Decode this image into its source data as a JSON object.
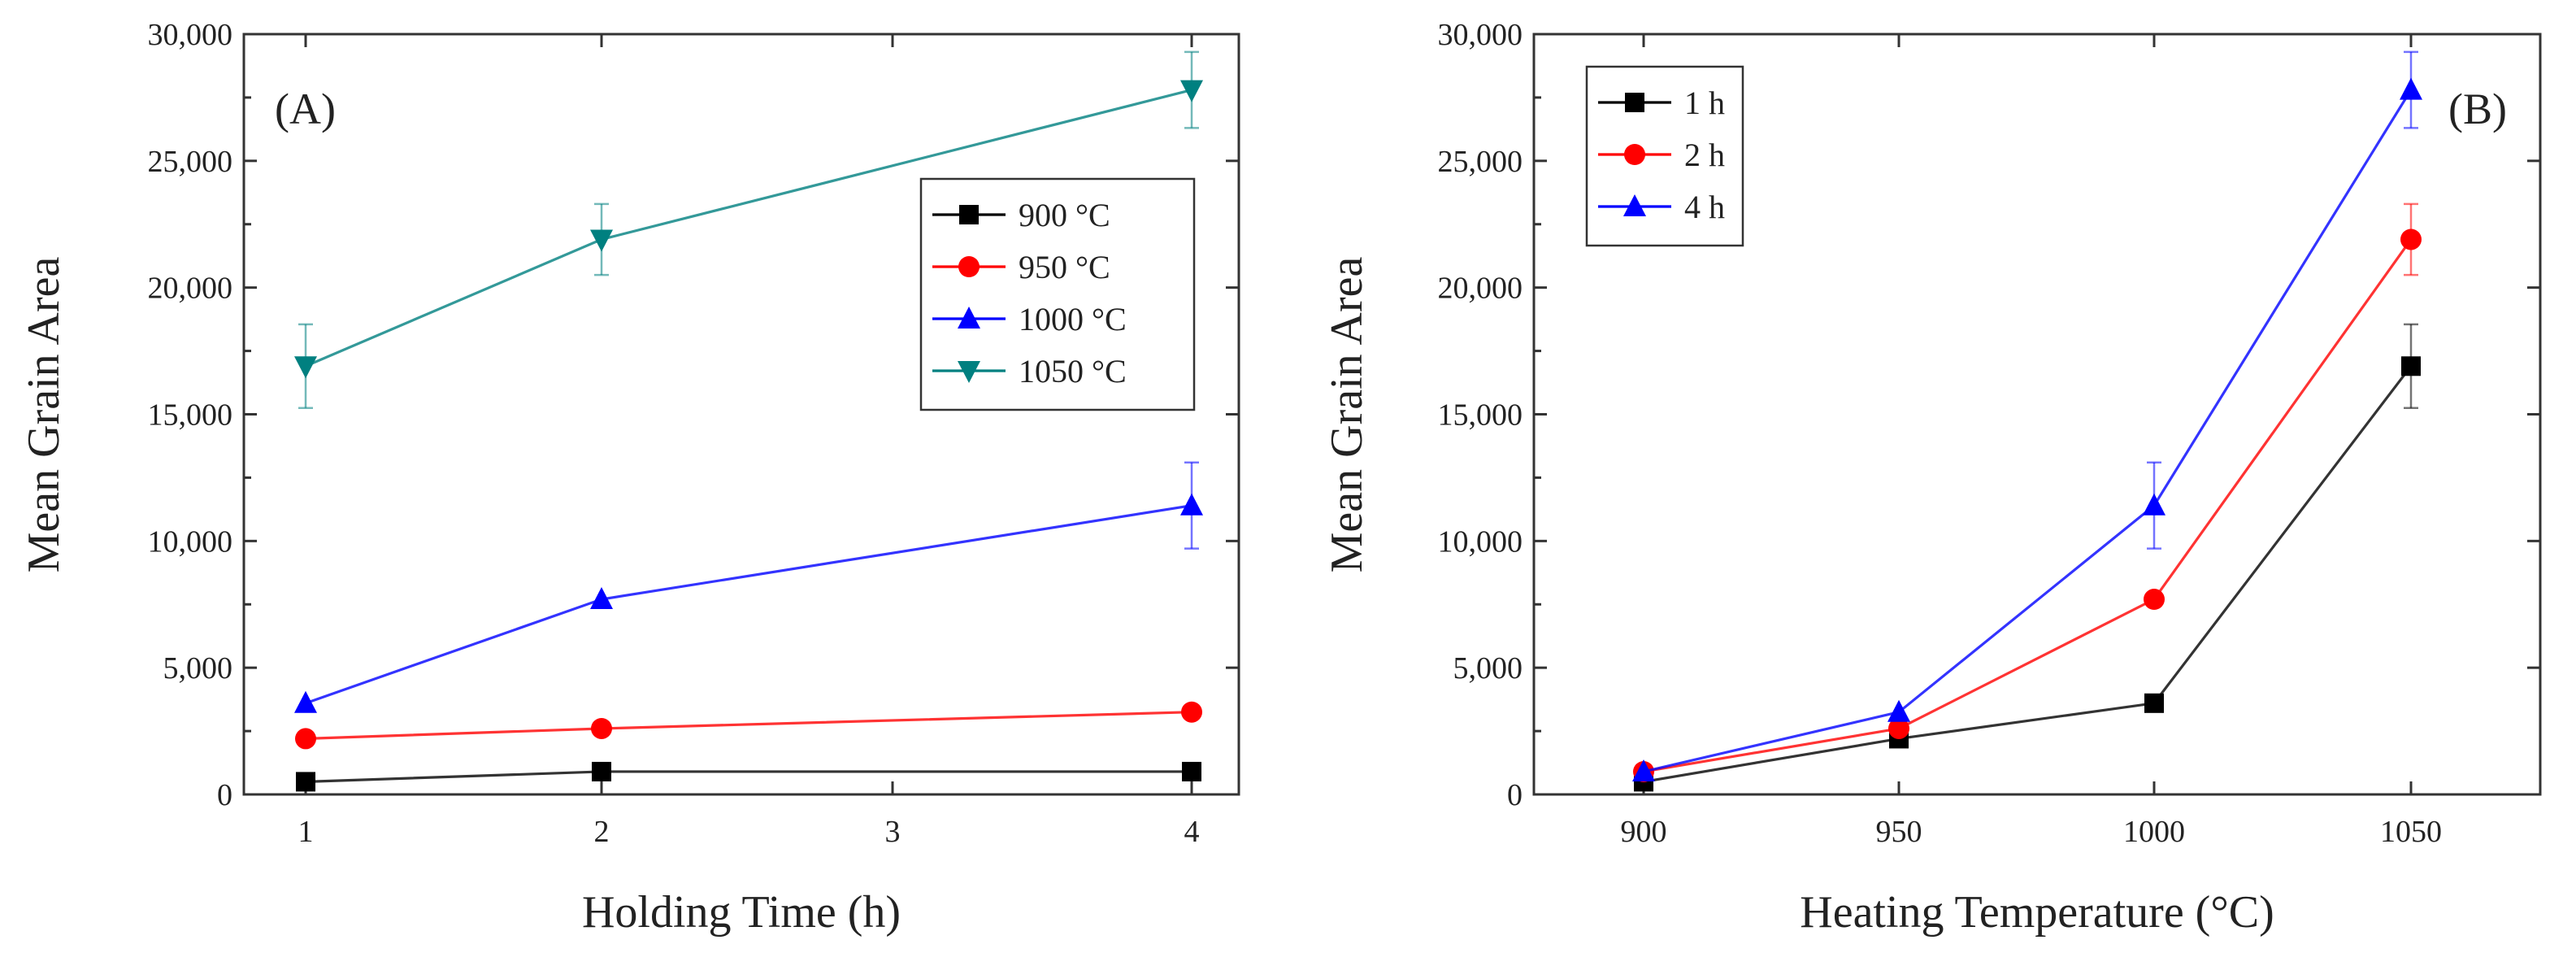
{
  "chart_data": [
    {
      "type": "line",
      "panel_label": "(A)",
      "xlabel": "Holding Time (h)",
      "ylabel": "Mean Grain Area",
      "categories": [
        "1",
        "2",
        "3",
        "4"
      ],
      "ylim": [
        0,
        30000
      ],
      "yticks": [
        "0",
        "5,000",
        "10,000",
        "15,000",
        "20,000",
        "25,000",
        "30,000"
      ],
      "yticks_values": [
        0,
        5000,
        10000,
        15000,
        20000,
        25000,
        30000
      ],
      "grid": false,
      "legend_position": "right",
      "series": [
        {
          "name": "900 °C",
          "color": "#000000",
          "marker": "square",
          "x": [
            "1",
            "2",
            "4"
          ],
          "values": [
            500,
            900,
            900
          ],
          "errors": [
            0,
            0,
            0
          ]
        },
        {
          "name": "950 °C",
          "color": "#ff0000",
          "marker": "circle",
          "x": [
            "1",
            "2",
            "4"
          ],
          "values": [
            2200,
            2600,
            3250
          ],
          "errors": [
            0,
            0,
            0
          ]
        },
        {
          "name": "1000 °C",
          "color": "#0000ff",
          "marker": "triangle-up",
          "x": [
            "1",
            "2",
            "4"
          ],
          "values": [
            3600,
            7700,
            11400
          ],
          "errors": [
            0,
            0,
            1700
          ]
        },
        {
          "name": "1050 °C",
          "color": "#008080",
          "marker": "triangle-down",
          "x": [
            "1",
            "2",
            "4"
          ],
          "values": [
            16900,
            21900,
            27800
          ],
          "errors": [
            1650,
            1400,
            1500
          ]
        }
      ]
    },
    {
      "type": "line",
      "panel_label": "(B)",
      "xlabel": "Heating Temperature (°C)",
      "ylabel": "Mean Grain Area",
      "categories": [
        "900",
        "950",
        "1000",
        "1050"
      ],
      "ylim": [
        0,
        30000
      ],
      "yticks": [
        "0",
        "5,000",
        "10,000",
        "15,000",
        "20,000",
        "25,000",
        "30,000"
      ],
      "yticks_values": [
        0,
        5000,
        10000,
        15000,
        20000,
        25000,
        30000
      ],
      "grid": false,
      "legend_position": "top-left",
      "series": [
        {
          "name": "1 h",
          "color": "#000000",
          "marker": "square",
          "x": [
            "900",
            "950",
            "1000",
            "1050"
          ],
          "values": [
            500,
            2200,
            3600,
            16900
          ],
          "errors": [
            0,
            0,
            0,
            1650
          ]
        },
        {
          "name": "2 h",
          "color": "#ff0000",
          "marker": "circle",
          "x": [
            "900",
            "950",
            "1000",
            "1050"
          ],
          "values": [
            900,
            2600,
            7700,
            21900
          ],
          "errors": [
            0,
            0,
            0,
            1400
          ]
        },
        {
          "name": "4 h",
          "color": "#0000ff",
          "marker": "triangle-up",
          "x": [
            "900",
            "950",
            "1000",
            "1050"
          ],
          "values": [
            900,
            3250,
            11400,
            27800
          ],
          "errors": [
            0,
            0,
            1700,
            1500
          ]
        }
      ]
    }
  ]
}
